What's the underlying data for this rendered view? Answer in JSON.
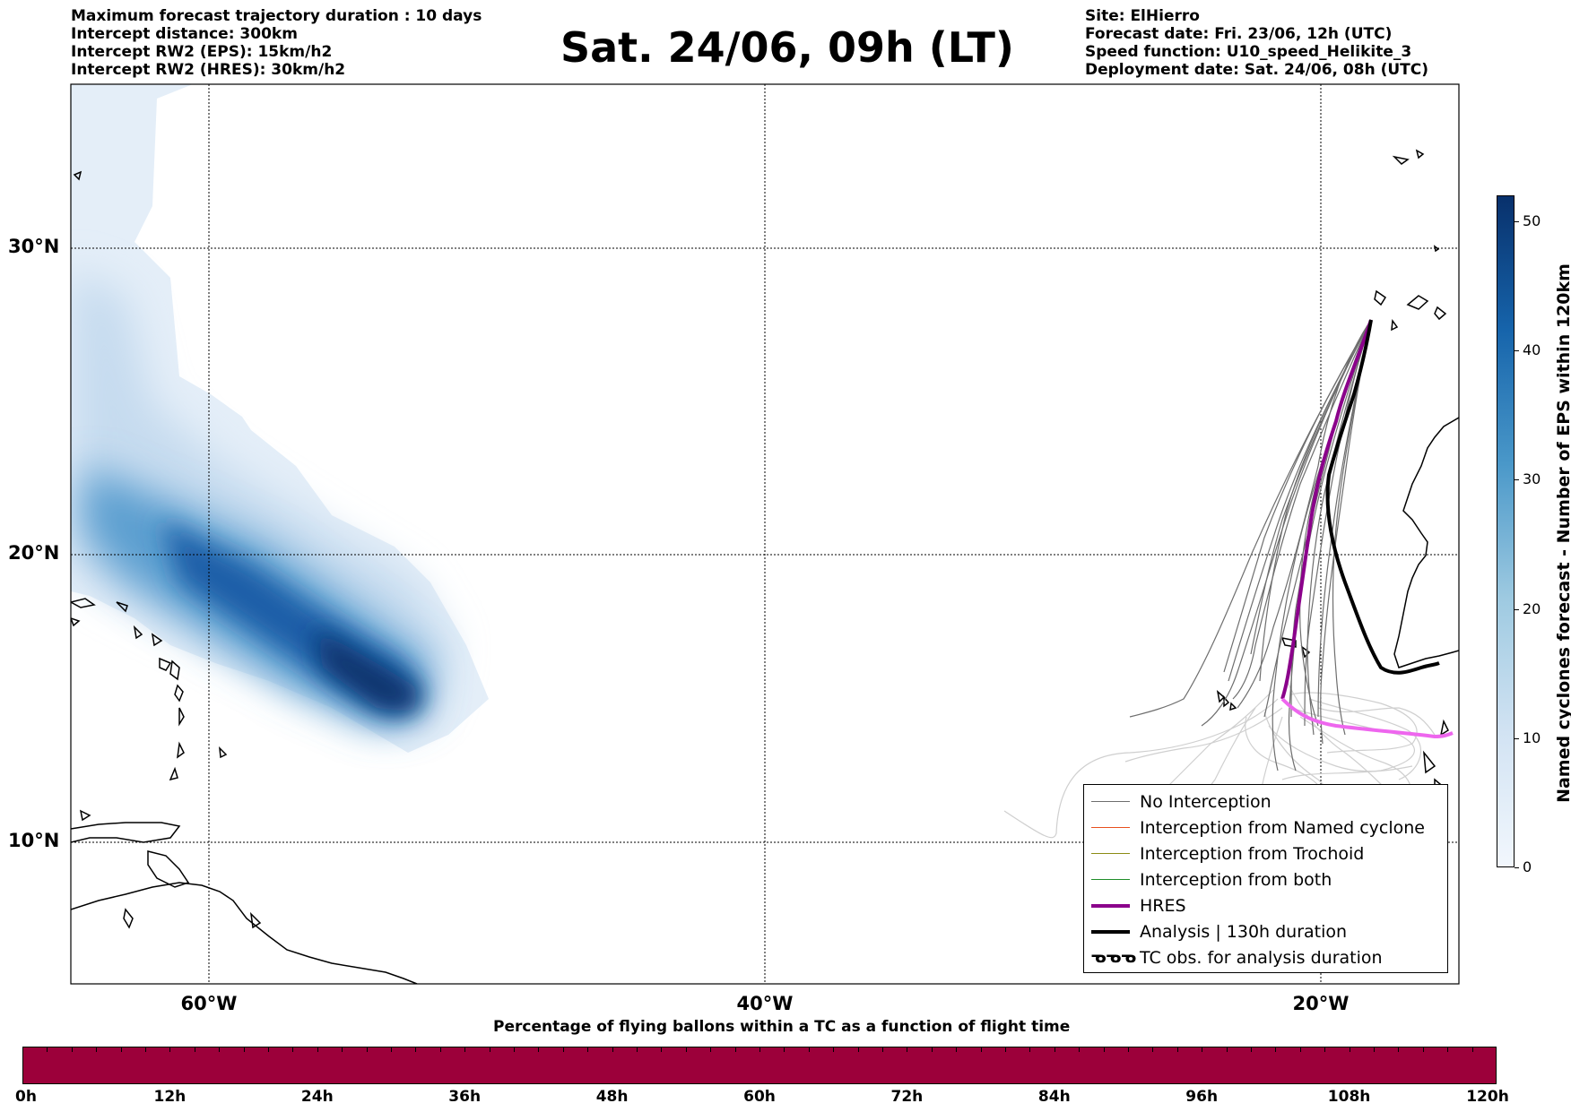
{
  "header_left": {
    "line1": "Maximum forecast trajectory duration : 10 days",
    "line2": "Intercept distance: 300km",
    "line3": "Intercept RW2 (EPS):  15km/h2",
    "line4": "Intercept RW2 (HRES): 30km/h2"
  },
  "title": "Sat. 24/06, 09h (LT)",
  "header_right": {
    "site": "Site: ElHierro",
    "forecast_date": "Forecast date: Fri. 23/06, 12h (UTC)",
    "speed_function": "Speed function: U10_speed_Helikite_3",
    "deployment_date": "Deployment date: Sat. 24/06, 08h (UTC)"
  },
  "map": {
    "lat_labels": [
      "30°N",
      "20°N",
      "10°N"
    ],
    "lon_labels": [
      "60°W",
      "40°W",
      "20°W"
    ],
    "gridlines": "dotted",
    "colors": {
      "no_interception": "#6e6e6e",
      "no_interception_late": "#c8c8c8",
      "named_cyclone": "#e8501e",
      "trochoid": "#8c8c14",
      "both": "#1e8c28",
      "hres": "#8b008b",
      "hres_late": "#ee66ee",
      "analysis": "#000000"
    }
  },
  "legend": {
    "items": [
      {
        "label": "No Interception",
        "color": "#6e6e6e"
      },
      {
        "label": "Interception from Named cyclone",
        "color": "#e8501e"
      },
      {
        "label": "Interception from Trochoid",
        "color": "#8c8c14"
      },
      {
        "label": "Interception from both",
        "color": "#1e8c28"
      },
      {
        "label": "HRES",
        "color": "#8b008b"
      },
      {
        "label": "Analysis | 130h duration",
        "color": "#000000"
      },
      {
        "label": "TC obs. for analysis duration",
        "symbol": "ᓀᓀᓀ"
      }
    ]
  },
  "colorbar": {
    "title": "Named cyclones forecast - Number of EPS within 120km",
    "ticks": [
      "0",
      "10",
      "20",
      "30",
      "40",
      "50"
    ],
    "max": 52,
    "color_low": "#e8f1fa",
    "color_high": "#08306b"
  },
  "bottom_bar": {
    "title": "Percentage of flying ballons within a TC as a function of flight time",
    "color": "#9c003a",
    "ticks": [
      "0h",
      "12h",
      "24h",
      "36h",
      "48h",
      "60h",
      "72h",
      "84h",
      "96h",
      "108h",
      "120h"
    ]
  }
}
